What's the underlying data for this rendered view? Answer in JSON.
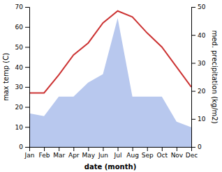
{
  "chart_data": {
    "type": "line",
    "xlabel": "date (month)",
    "ylabel": "max temp (C)",
    "y2label": "med. precipitation (kg/m2)",
    "categories": [
      "Jan",
      "Feb",
      "Mar",
      "Apr",
      "May",
      "Jun",
      "Jul",
      "Aug",
      "Sep",
      "Oct",
      "Nov",
      "Dec"
    ],
    "ylim": [
      0,
      70
    ],
    "yticks": [
      0,
      10,
      20,
      30,
      40,
      50,
      60,
      70
    ],
    "y2lim": [
      0,
      50
    ],
    "y2ticks": [
      0,
      10,
      20,
      30,
      40,
      50
    ],
    "series": [
      {
        "type": "area",
        "axis": "y2",
        "color": "#b8c8ee",
        "values": [
          12,
          11,
          18,
          18,
          23,
          26,
          46,
          18,
          18,
          18,
          9,
          7
        ]
      },
      {
        "type": "line",
        "color": "#cc3333",
        "values": [
          27,
          27,
          36,
          46,
          52,
          62,
          68,
          65,
          57,
          50,
          40,
          30
        ]
      }
    ]
  }
}
